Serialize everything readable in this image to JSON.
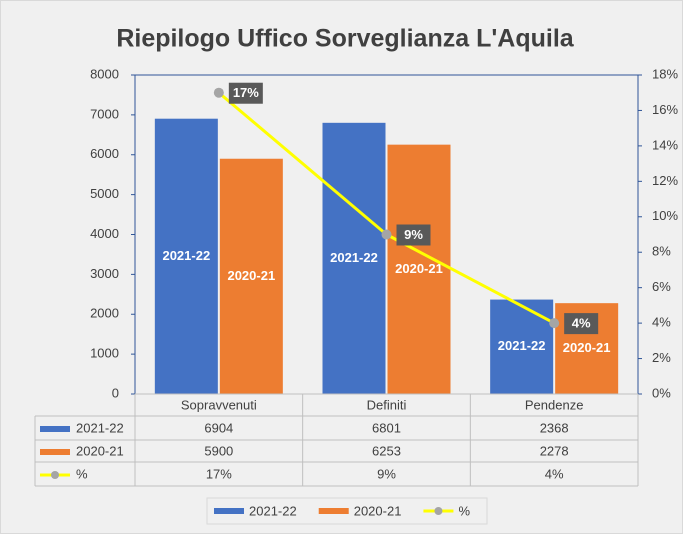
{
  "chart_data": {
    "type": "bar",
    "title": "Riepilogo Uffico Sorveglianza L'Aquila",
    "categories": [
      "Sopravvenuti",
      "Definiti",
      "Pendenze"
    ],
    "series": [
      {
        "name": "2021-22",
        "color": "#4472c4",
        "values": [
          6904,
          6801,
          2368
        ]
      },
      {
        "name": "2020-21",
        "color": "#ed7d31",
        "values": [
          5900,
          6253,
          2278
        ]
      },
      {
        "name": "%",
        "type": "line",
        "axis": "y2",
        "color": "#ffff00",
        "marker_color": "#a5a5a5",
        "values": [
          17,
          9,
          4
        ],
        "value_labels": [
          "17%",
          "9%",
          "4%"
        ]
      }
    ],
    "ylim": [
      0,
      8000
    ],
    "yticks": [
      0,
      1000,
      2000,
      3000,
      4000,
      5000,
      6000,
      7000,
      8000
    ],
    "y2lim": [
      0,
      18
    ],
    "y2ticks": [
      {
        "value": 0,
        "label": "0%"
      },
      {
        "value": 2,
        "label": "2%"
      },
      {
        "value": 4,
        "label": "4%"
      },
      {
        "value": 6,
        "label": "6%"
      },
      {
        "value": 8,
        "label": "8%"
      },
      {
        "value": 10,
        "label": "10%"
      },
      {
        "value": 12,
        "label": "12%"
      },
      {
        "value": 14,
        "label": "14%"
      },
      {
        "value": 16,
        "label": "16%"
      },
      {
        "value": 18,
        "label": "18%"
      }
    ],
    "grid": false,
    "legend": "bottom",
    "data_table": true
  }
}
